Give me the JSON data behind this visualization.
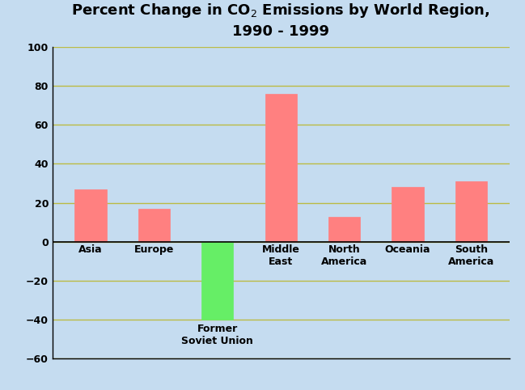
{
  "title": "Percent Change in CO$_2$ Emissions by World Region,\n1990 - 1999",
  "categories": [
    "Asia",
    "Europe",
    "Former\nSoviet Union",
    "Middle\nEast",
    "North\nAmerica",
    "Oceania",
    "South\nAmerica"
  ],
  "values": [
    27,
    17,
    -40,
    76,
    13,
    28,
    31
  ],
  "bar_colors": [
    "#FF8080",
    "#FF8080",
    "#66EE66",
    "#FF8080",
    "#FF8080",
    "#FF8080",
    "#FF8080"
  ],
  "ylim": [
    -60,
    100
  ],
  "yticks": [
    -60,
    -40,
    -20,
    0,
    20,
    40,
    60,
    80,
    100
  ],
  "background_color": "#C5DCF0",
  "grid_color": "#BBBB44",
  "title_fontsize": 13,
  "tick_fontsize": 9,
  "bar_width": 0.5,
  "figsize": [
    6.49,
    4.82
  ],
  "dpi": 100
}
